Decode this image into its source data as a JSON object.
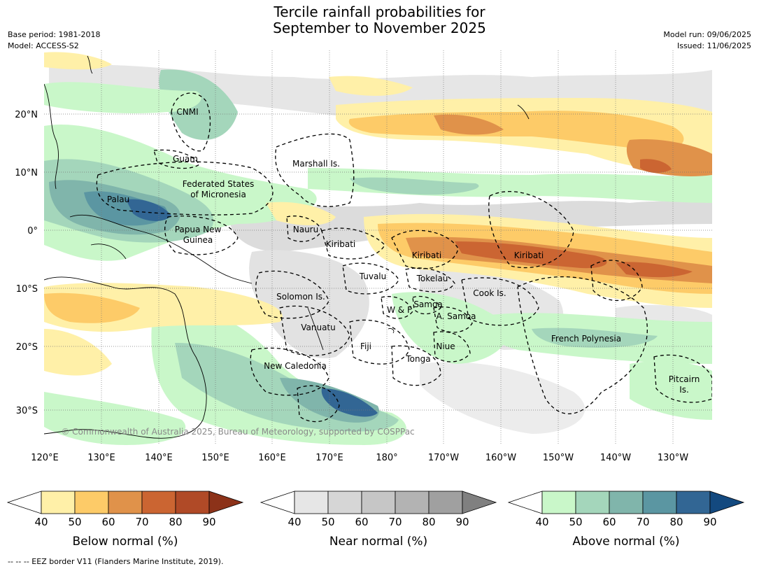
{
  "title_line1": "Tercile rainfall probabilities for",
  "title_line2": "September to November 2025",
  "base_period": "Base period: 1981-2018",
  "model": "Model: ACCESS-S2",
  "model_run": "Model run: 09/06/2025",
  "issued": "Issued: 11/06/2025",
  "copyright": "© Commonwealth of Australia 2025, Bureau of Meteorology, supported by COSPPac",
  "footer": "--  --  -- EEZ border V11 (Flanders Marine Institute, 2019).",
  "lon_ticks": [
    "120°E",
    "130°E",
    "140°E",
    "150°E",
    "160°E",
    "170°E",
    "180°",
    "170°W",
    "160°W",
    "150°W",
    "140°W",
    "130°W"
  ],
  "lat_ticks": [
    "20°N",
    "10°N",
    "0°",
    "10°S",
    "20°S",
    "30°S"
  ],
  "regions": [
    "CNMI",
    "Guam",
    "Marshall Is.",
    "Federated States",
    "of Micronesia",
    "Palau",
    "Papua New",
    "Guinea",
    "Nauru",
    "Kiribati",
    "Kiribati",
    "Kiribati",
    "Tuvalu",
    "Tokelau",
    "Solomon Is.",
    "Cook Is.",
    "W & F",
    "Samoa",
    "A. Samoa",
    "Vanuatu",
    "Fiji",
    "Niue",
    "Tonga",
    "French Polynesia",
    "New Caledonia",
    "Pitcairn",
    "Is."
  ],
  "colorbars": [
    {
      "label": "Below normal (%)",
      "ticks": [
        "40",
        "50",
        "60",
        "70",
        "80",
        "90"
      ],
      "colors": [
        "#fff0a8",
        "#fdcb68",
        "#e0924a",
        "#cb6532",
        "#b04a27",
        "#8c3219"
      ]
    },
    {
      "label": "Near normal (%)",
      "ticks": [
        "40",
        "50",
        "60",
        "70",
        "80",
        "90"
      ],
      "colors": [
        "#e6e6e6",
        "#d6d6d6",
        "#c6c6c6",
        "#b3b3b3",
        "#a0a0a0",
        "#808080"
      ]
    },
    {
      "label": "Above normal (%)",
      "ticks": [
        "40",
        "50",
        "60",
        "70",
        "80",
        "90"
      ],
      "colors": [
        "#c9f7c9",
        "#a4d6bb",
        "#80b5ab",
        "#5b96a2",
        "#326694",
        "#13497f"
      ]
    }
  ]
}
